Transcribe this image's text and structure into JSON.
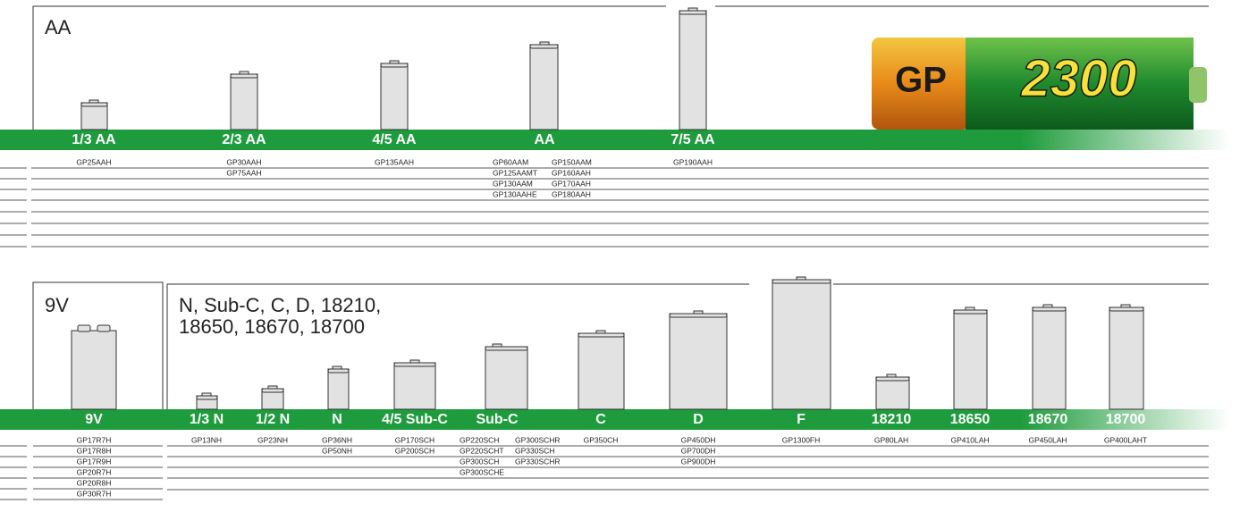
{
  "sections": [
    {
      "title_lines": [
        "AA"
      ],
      "logo": {
        "brand": "GP",
        "capacity": "2300"
      },
      "sizes": [
        {
          "label": "1/3 AA",
          "models": [
            [
              "GP25AAH"
            ]
          ]
        },
        {
          "label": "2/3 AA",
          "models": [
            [
              "GP30AAH"
            ],
            [
              "GP75AAH"
            ]
          ]
        },
        {
          "label": "4/5 AA",
          "models": [
            [
              "GP135AAH"
            ]
          ]
        },
        {
          "label": "AA",
          "models": [
            [
              "GP60AAM",
              "GP150AAM"
            ],
            [
              "GP125AAMT",
              "GP160AAH"
            ],
            [
              "GP130AAM",
              "GP170AAH"
            ],
            [
              "GP130AAHE",
              "GP180AAH"
            ]
          ]
        },
        {
          "label": "7/5 AA",
          "models": [
            [
              "GP190AAH"
            ]
          ]
        }
      ]
    },
    {
      "title_lines": [
        "9V"
      ],
      "sizes": [
        {
          "label": "9V",
          "models": [
            [
              "GP17R7H"
            ],
            [
              "GP17R8H"
            ],
            [
              "GP17R9H"
            ],
            [
              "GP20R7H"
            ],
            [
              "GP20R8H"
            ],
            [
              "GP30R7H"
            ]
          ]
        }
      ]
    },
    {
      "title_lines": [
        "N, Sub-C, C, D, 18210,",
        "18650, 18670, 18700"
      ],
      "sizes": [
        {
          "label": "1/3 N",
          "models": [
            [
              "GP13NH"
            ]
          ]
        },
        {
          "label": "1/2 N",
          "models": [
            [
              "GP23NH"
            ]
          ]
        },
        {
          "label": "N",
          "models": [
            [
              "GP36NH"
            ],
            [
              "GP50NH"
            ]
          ]
        },
        {
          "label": "4/5 Sub-C",
          "models": [
            [
              "GP170SCH"
            ],
            [
              "GP200SCH"
            ]
          ]
        },
        {
          "label": "Sub-C",
          "models": [
            [
              "GP220SCH",
              "GP300SCHR"
            ],
            [
              "GP220SCHT",
              "GP330SCH"
            ],
            [
              "GP300SCH",
              "GP330SCHR"
            ],
            [
              "GP300SCHE"
            ]
          ]
        },
        {
          "label": "C",
          "models": [
            [
              "GP350CH"
            ]
          ]
        },
        {
          "label": "D",
          "models": [
            [
              "GP450DH"
            ],
            [
              "GP700DH"
            ],
            [
              "GP900DH"
            ]
          ]
        },
        {
          "label": "F",
          "models": [
            [
              "GP1300FH"
            ]
          ]
        },
        {
          "label": "18210",
          "models": [
            [
              "GP80LAH"
            ]
          ]
        },
        {
          "label": "18650",
          "models": [
            [
              "GP410LAH"
            ]
          ]
        },
        {
          "label": "18670",
          "models": [
            [
              "GP450LAH"
            ]
          ]
        },
        {
          "label": "18700",
          "models": [
            [
              "GP400LAHT"
            ]
          ]
        }
      ]
    }
  ]
}
